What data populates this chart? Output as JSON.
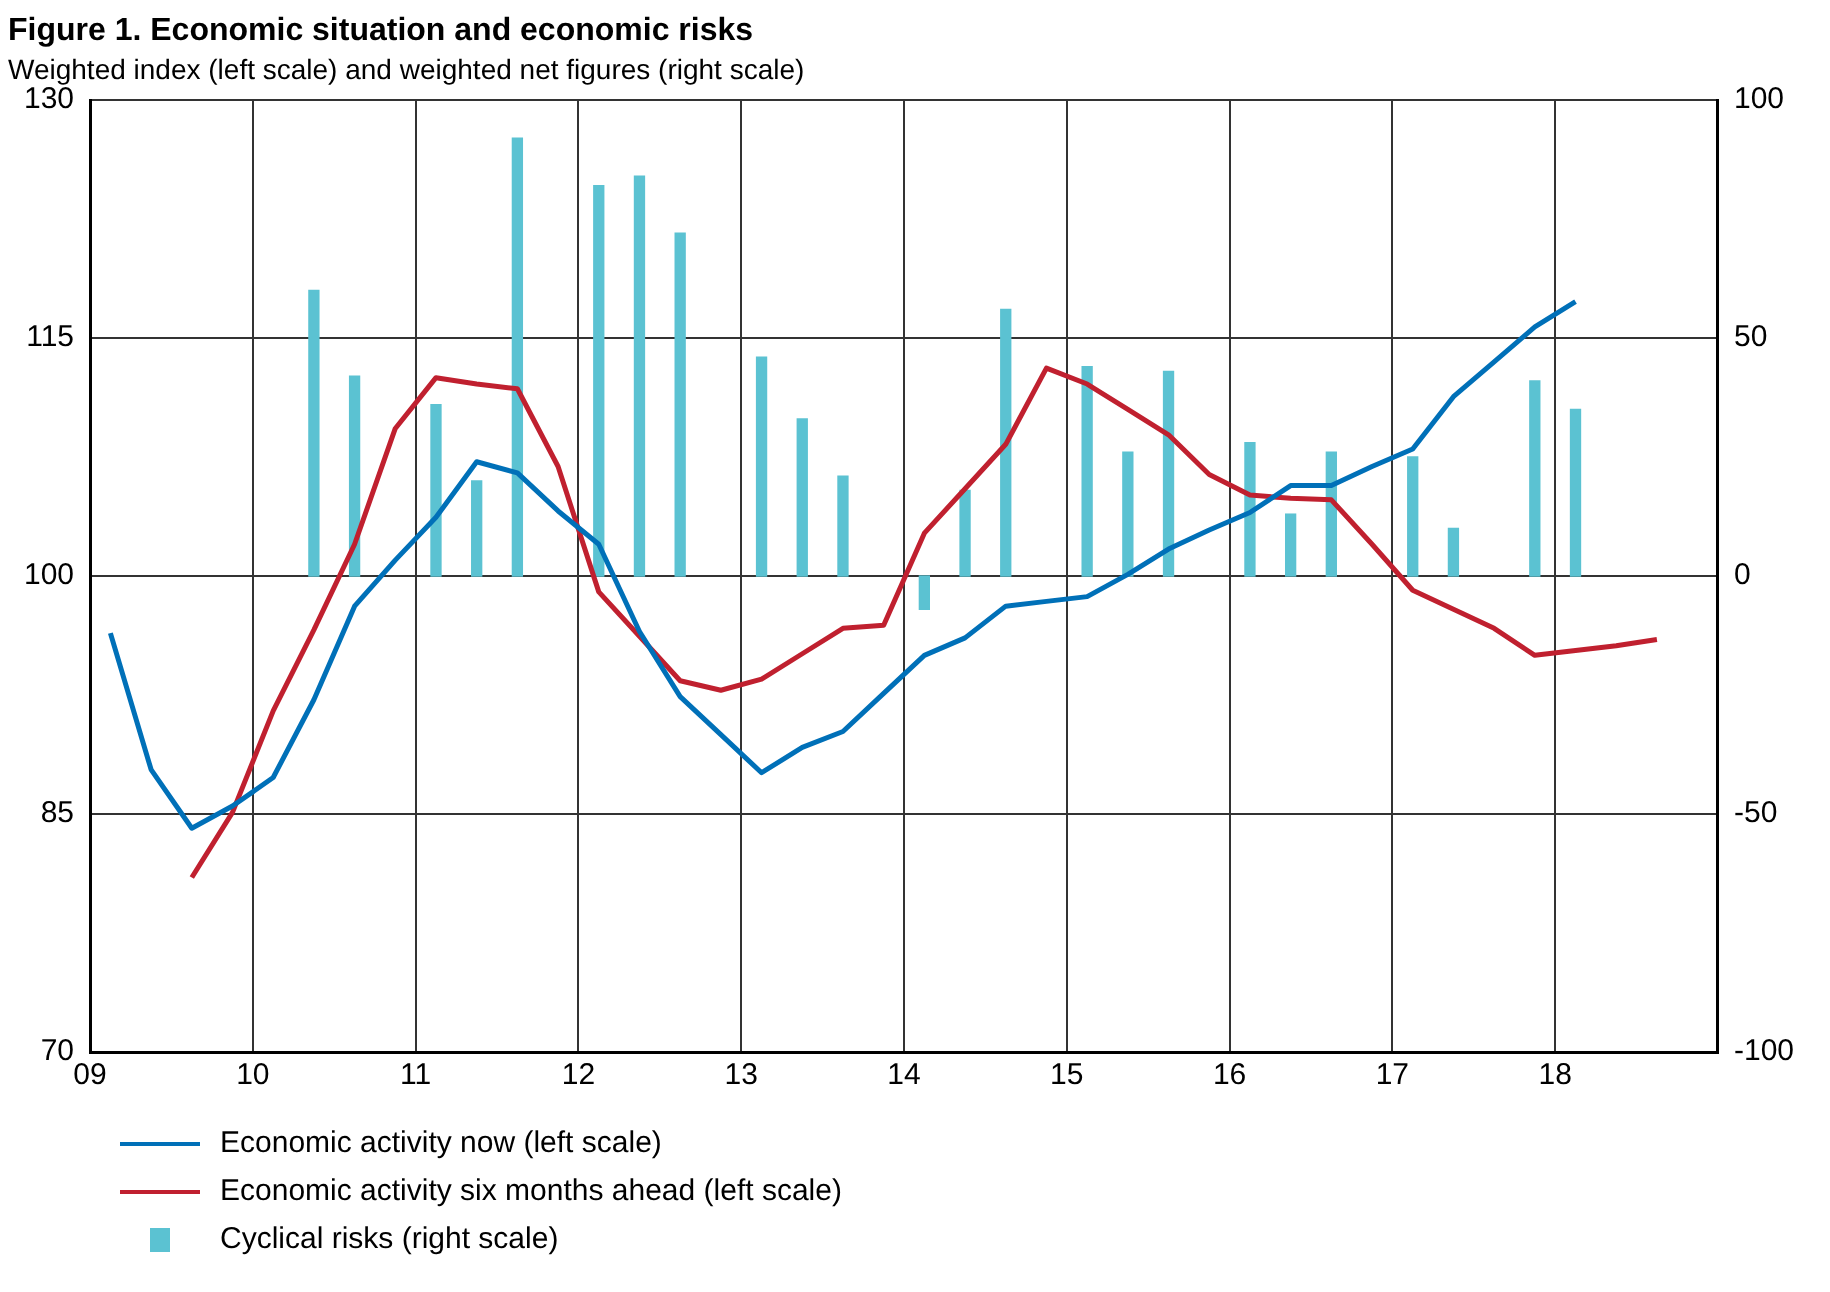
{
  "chart_data": {
    "type": "line",
    "title": "Figure 1. Economic situation and economic risks",
    "subtitle": "Weighted index (left scale) and weighted net figures (right scale)",
    "x": [
      2009.125,
      2009.375,
      2009.625,
      2009.875,
      2010.125,
      2010.375,
      2010.625,
      2010.875,
      2011.125,
      2011.375,
      2011.625,
      2011.875,
      2012.125,
      2012.375,
      2012.625,
      2012.875,
      2013.125,
      2013.375,
      2013.625,
      2013.875,
      2014.125,
      2014.375,
      2014.625,
      2014.875,
      2015.125,
      2015.375,
      2015.625,
      2015.875,
      2016.125,
      2016.375,
      2016.625,
      2016.875,
      2017.125,
      2017.375,
      2017.625,
      2017.875,
      2018.125,
      2018.375,
      2018.625
    ],
    "series": [
      {
        "name": "Economic activity now (left scale)",
        "color": "#0070b8",
        "axis": "y",
        "values": [
          96.4,
          87.8,
          84.1,
          85.5,
          87.3,
          92.2,
          98.1,
          101,
          103.7,
          107.2,
          106.5,
          104.1,
          102,
          96.5,
          92.4,
          90,
          87.6,
          89.2,
          90.2,
          92.6,
          95,
          96.1,
          98.1,
          98.4,
          98.7,
          100.1,
          101.7,
          102.9,
          104,
          105.7,
          105.7,
          106.9,
          108,
          111.3,
          113.5,
          115.7,
          117.3,
          null,
          null
        ]
      },
      {
        "name": "Economic activity six months ahead (left scale)",
        "color": "#c0202f",
        "axis": "y",
        "values": [
          null,
          null,
          81,
          85.1,
          91.5,
          96.6,
          102,
          109.3,
          112.5,
          112.1,
          111.8,
          106.9,
          99,
          96.2,
          93.4,
          92.8,
          93.5,
          95.1,
          96.7,
          96.9,
          102.7,
          105.5,
          108.3,
          113.1,
          112.1,
          110.5,
          108.9,
          106.4,
          105.1,
          104.9,
          104.8,
          102,
          99.1,
          97.9,
          96.7,
          95,
          95.3,
          95.6,
          96
        ]
      },
      {
        "name": "Cyclical risks (right scale)",
        "type": "bar",
        "color": "#5bc2d2",
        "axis": "y2",
        "values": [
          null,
          null,
          null,
          null,
          null,
          60,
          42,
          null,
          36,
          20,
          92,
          null,
          82,
          84,
          72,
          null,
          46,
          33,
          21,
          null,
          -7,
          18,
          56,
          null,
          44,
          26,
          43,
          null,
          28,
          13,
          26,
          null,
          25,
          10,
          null,
          41,
          35,
          null,
          null
        ]
      }
    ],
    "xlim": [
      2009,
      2019
    ],
    "xticks": [
      {
        "value": 2009,
        "label": "09"
      },
      {
        "value": 2010,
        "label": "10"
      },
      {
        "value": 2011,
        "label": "11"
      },
      {
        "value": 2012,
        "label": "12"
      },
      {
        "value": 2013,
        "label": "13"
      },
      {
        "value": 2014,
        "label": "14"
      },
      {
        "value": 2015,
        "label": "15"
      },
      {
        "value": 2016,
        "label": "16"
      },
      {
        "value": 2017,
        "label": "17"
      },
      {
        "value": 2018,
        "label": "18"
      }
    ],
    "ylim": [
      70,
      130
    ],
    "yticks": [
      70,
      85,
      100,
      115,
      130
    ],
    "y2lim": [
      -100,
      100
    ],
    "y2ticks": [
      -100,
      -50,
      0,
      50,
      100
    ],
    "grid": true,
    "legend": "bottom left",
    "line_style": "solid"
  }
}
